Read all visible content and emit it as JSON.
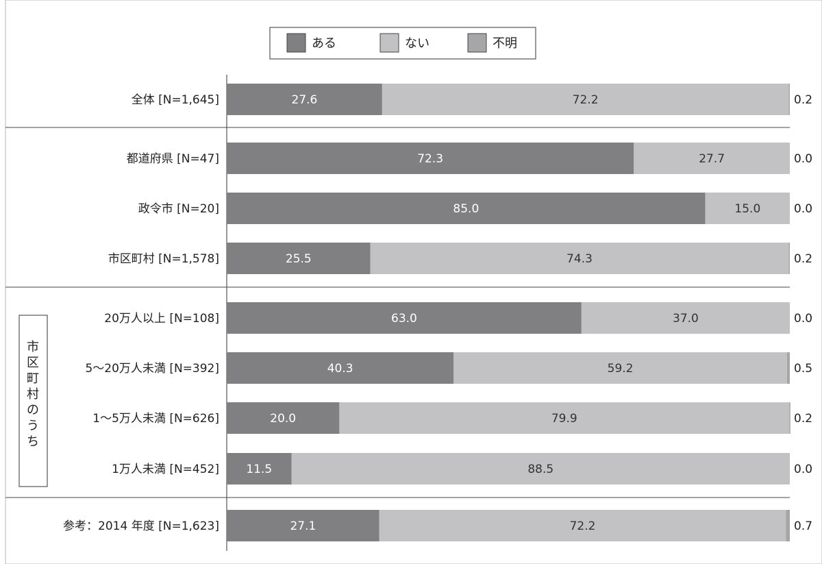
{
  "chart_data": {
    "type": "bar",
    "orientation": "horizontal",
    "stacked": true,
    "normalized_to_percent": true,
    "legend": [
      "ある",
      "ない",
      "不明"
    ],
    "legend_position": "top-center",
    "categories": [
      "全体 [N=1,645]",
      "都道府県 [N=47]",
      "政令市 [N=20]",
      "市区町村 [N=1,578]",
      "20万人以上 [N=108]",
      "5〜20万人未満 [N=392]",
      "1〜5万人未満 [N=626]",
      "1万人未満 [N=452]",
      "参考：2014 年度 [N=1,623]"
    ],
    "series": [
      {
        "name": "ある",
        "values": [
          27.6,
          72.3,
          85.0,
          25.5,
          63.0,
          40.3,
          20.0,
          11.5,
          27.1
        ]
      },
      {
        "name": "ない",
        "values": [
          72.2,
          27.7,
          15.0,
          74.3,
          37.0,
          59.2,
          79.9,
          88.5,
          72.2
        ]
      },
      {
        "name": "不明",
        "values": [
          0.2,
          0.0,
          0.0,
          0.2,
          0.0,
          0.5,
          0.2,
          0.0,
          0.7
        ]
      }
    ],
    "labels": [
      [
        "27.6",
        "72.2",
        "0.2"
      ],
      [
        "72.3",
        "27.7",
        "0.0"
      ],
      [
        "85.0",
        "15.0",
        "0.0"
      ],
      [
        "25.5",
        "74.3",
        "0.2"
      ],
      [
        "63.0",
        "37.0",
        "0.0"
      ],
      [
        "40.3",
        "59.2",
        "0.5"
      ],
      [
        "20.0",
        "79.9",
        "0.2"
      ],
      [
        "11.5",
        "88.5",
        "0.0"
      ],
      [
        "27.1",
        "72.2",
        "0.7"
      ]
    ],
    "group_label": "市区町村のうち",
    "group_rows": [
      4,
      5,
      6,
      7
    ],
    "separators_after_rows": [
      0,
      3,
      7
    ],
    "colors": {
      "ある": "#808083",
      "ない": "#c2c2c5",
      "不明": "#a6a6a9"
    },
    "xlim": [
      0,
      100
    ],
    "grid": false
  }
}
